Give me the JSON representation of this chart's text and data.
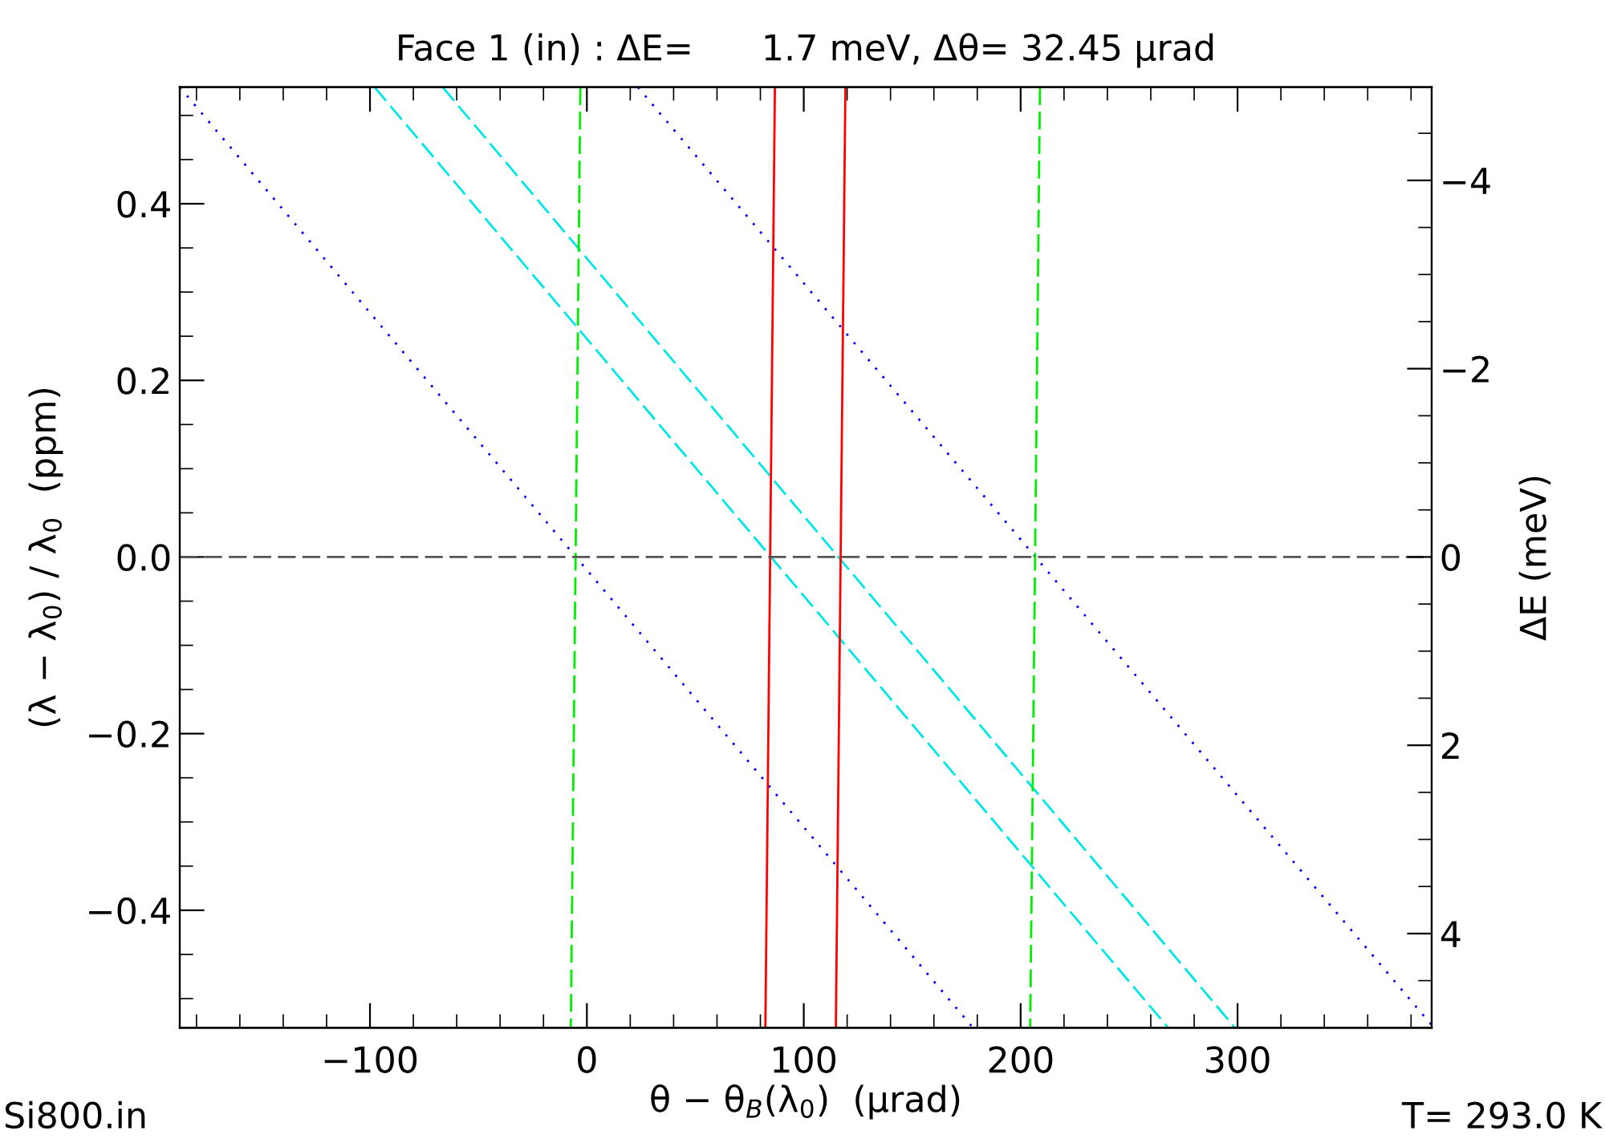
{
  "chart_data": {
    "type": "line",
    "title": "Face 1 (in) : ΔE=      1.7 meV, Δθ= 32.45 μrad",
    "xlabel": "θ − θ$_{B}$(λ$_{0}$)  (μrad)",
    "ylabel": "(λ − λ$_{0}$) / λ$_{0}$  (ppm)",
    "y2label": "ΔE (meV)",
    "annotations": [
      "Si800.in",
      "T= 293.0 K"
    ],
    "series": [
      {
        "color": "#0000ff",
        "line_style": "dotted",
        "x": [
          -187.7,
          178
        ],
        "values": [
          0.532,
          -0.533
        ]
      },
      {
        "color": "#0000ff",
        "line_style": "dotted",
        "x": [
          23.5,
          389.5
        ],
        "values": [
          0.532,
          -0.53
        ]
      },
      {
        "color": "#00e5e5",
        "line_style": "dashed",
        "x": [
          -97.9,
          268
        ],
        "values": [
          0.532,
          -0.533
        ]
      },
      {
        "color": "#00e5e5",
        "line_style": "dashed",
        "x": [
          -66.5,
          298.8
        ],
        "values": [
          0.532,
          -0.533
        ]
      },
      {
        "color": "#ff0000",
        "line_style": "solid",
        "x": [
          86.7,
          82.3
        ],
        "values": [
          0.532,
          -0.533
        ]
      },
      {
        "color": "#ff0000",
        "line_style": "solid",
        "x": [
          119.2,
          114.8
        ],
        "values": [
          0.532,
          -0.533
        ]
      },
      {
        "color": "#00ee00",
        "line_style": "dashed",
        "x": [
          -3.0,
          -7.4
        ],
        "values": [
          0.532,
          -0.533
        ]
      },
      {
        "color": "#00ee00",
        "line_style": "dashed",
        "x": [
          208.9,
          204.4
        ],
        "values": [
          0.532,
          -0.533
        ]
      }
    ],
    "ref_lines": [
      {
        "axis": "y",
        "value": 0,
        "color": "#555555",
        "line_style": "dashed"
      }
    ],
    "xlim": [
      -187.7,
      389.5
    ],
    "xticks": [
      {
        "value": -180,
        "label": null
      },
      {
        "value": -160,
        "label": null
      },
      {
        "value": -140,
        "label": null
      },
      {
        "value": -120,
        "label": null
      },
      {
        "value": -100,
        "label": "−100"
      },
      {
        "value": -80,
        "label": null
      },
      {
        "value": -60,
        "label": null
      },
      {
        "value": -40,
        "label": null
      },
      {
        "value": -20,
        "label": null
      },
      0,
      {
        "value": 20,
        "label": null
      },
      {
        "value": 40,
        "label": null
      },
      {
        "value": 60,
        "label": null
      },
      {
        "value": 80,
        "label": null
      },
      100,
      {
        "value": 120,
        "label": null
      },
      {
        "value": 140,
        "label": null
      },
      {
        "value": 160,
        "label": null
      },
      {
        "value": 180,
        "label": null
      },
      200,
      {
        "value": 220,
        "label": null
      },
      {
        "value": 240,
        "label": null
      },
      {
        "value": 260,
        "label": null
      },
      {
        "value": 280,
        "label": null
      },
      300,
      {
        "value": 320,
        "label": null
      },
      {
        "value": 340,
        "label": null
      },
      {
        "value": 360,
        "label": null
      },
      {
        "value": 380,
        "label": null
      }
    ],
    "ylim": [
      -0.533,
      0.532
    ],
    "yticks": [
      {
        "value": -0.5,
        "label": null
      },
      {
        "value": -0.4,
        "label": "−0.4"
      },
      {
        "value": -0.35,
        "label": null
      },
      {
        "value": -0.3,
        "label": null
      },
      {
        "value": -0.25,
        "label": null
      },
      {
        "value": -0.2,
        "label": "−0.2"
      },
      {
        "value": -0.15,
        "label": null
      },
      {
        "value": -0.1,
        "label": null
      },
      {
        "value": -0.05,
        "label": null
      },
      {
        "value": 0,
        "label": "0.0"
      },
      {
        "value": 0.05,
        "label": null
      },
      {
        "value": 0.1,
        "label": null
      },
      {
        "value": 0.15,
        "label": null
      },
      0.2,
      {
        "value": 0.25,
        "label": null
      },
      {
        "value": 0.3,
        "label": null
      },
      {
        "value": 0.35,
        "label": null
      },
      0.4,
      {
        "value": 0.45,
        "label": null
      },
      {
        "value": 0.5,
        "label": null
      },
      {
        "value": -0.45,
        "label": null
      }
    ],
    "y2lim": [
      5.0,
      -4.99
    ],
    "y2ticks": [
      {
        "value": -4.5,
        "label": null
      },
      {
        "value": -4,
        "label": "−4"
      },
      {
        "value": -3.5,
        "label": null
      },
      {
        "value": -3,
        "label": null
      },
      {
        "value": -2.5,
        "label": null
      },
      {
        "value": -2,
        "label": "−2"
      },
      {
        "value": -1.5,
        "label": null
      },
      {
        "value": -1,
        "label": null
      },
      {
        "value": -0.5,
        "label": null
      },
      0,
      {
        "value": 0.5,
        "label": null
      },
      {
        "value": 1,
        "label": null
      },
      {
        "value": 1.5,
        "label": null
      },
      2,
      {
        "value": 2.5,
        "label": null
      },
      {
        "value": 3,
        "label": null
      },
      {
        "value": 3.5,
        "label": null
      },
      4,
      {
        "value": 4.5,
        "label": null
      }
    ],
    "grid": false,
    "legend": false
  }
}
